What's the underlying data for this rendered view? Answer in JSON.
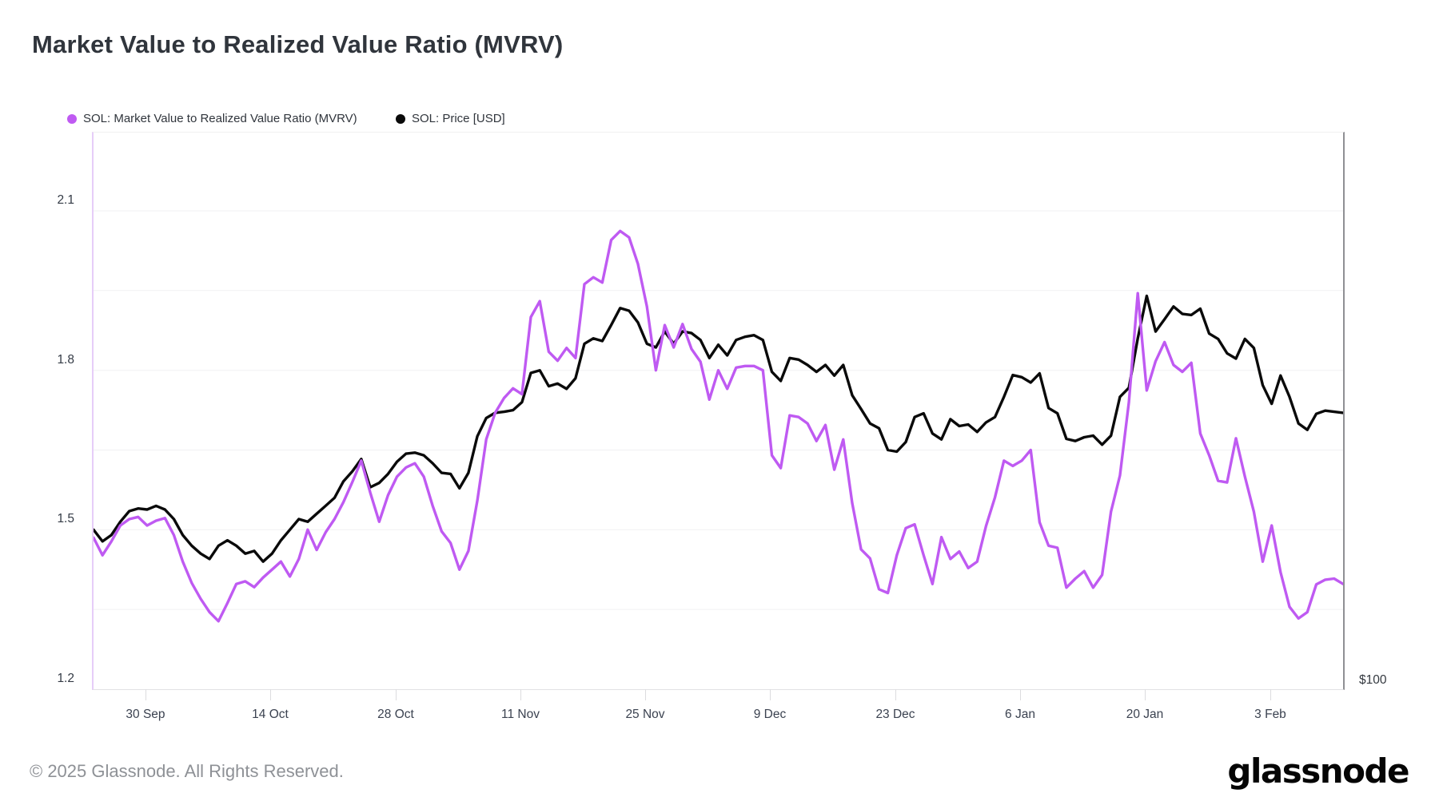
{
  "title": "Market Value to Realized Value Ratio (MVRV)",
  "legend": {
    "mvrv": {
      "label": "SOL: Market Value to Realized Value Ratio (MVRV)",
      "color": "#bf5af2"
    },
    "price": {
      "label": "SOL: Price [USD]",
      "color": "#0a0a0a"
    }
  },
  "footer": {
    "copyright": "© 2025 Glassnode. All Rights Reserved."
  },
  "watermark": "glassnode",
  "chart_data": {
    "type": "line",
    "title": "Market Value to Realized Value Ratio (MVRV)",
    "interval": "1 day",
    "start_day": "2024-09-24",
    "end_day": "2025-02-11",
    "x_tick_labels": [
      "30 Sep",
      "14 Oct",
      "28 Oct",
      "11 Nov",
      "25 Nov",
      "9 Dec",
      "23 Dec",
      "6 Jan",
      "20 Jan",
      "3 Feb"
    ],
    "x_tick_day_offsets": [
      6,
      20,
      34,
      48,
      62,
      76,
      90,
      104,
      118,
      132
    ],
    "y_axis_left": {
      "tick_labels": [
        "2.1",
        "1.8",
        "1.5",
        "1.2"
      ],
      "tick_values": [
        2.1,
        1.8,
        1.5,
        1.2
      ],
      "minor_gridline_values": [
        1.95,
        1.65,
        1.35
      ],
      "visible_range": [
        1.2,
        2.247
      ],
      "grid": true
    },
    "y_axis_right": {
      "tick_labels": [
        "$100"
      ],
      "note": "price axis, only $100 visible at bottom"
    },
    "legend_position": "top-left",
    "series": [
      {
        "name": "SOL: Market Value to Realized Value Ratio (MVRV)",
        "color": "#bf5af2",
        "axis": "left",
        "values": [
          1.485,
          1.452,
          1.478,
          1.508,
          1.52,
          1.524,
          1.508,
          1.517,
          1.522,
          1.49,
          1.44,
          1.4,
          1.37,
          1.345,
          1.328,
          1.362,
          1.398,
          1.403,
          1.392,
          1.41,
          1.425,
          1.44,
          1.412,
          1.445,
          1.5,
          1.462,
          1.495,
          1.52,
          1.552,
          1.59,
          1.63,
          1.57,
          1.515,
          1.565,
          1.6,
          1.617,
          1.625,
          1.6,
          1.545,
          1.497,
          1.475,
          1.425,
          1.46,
          1.555,
          1.67,
          1.72,
          1.748,
          1.766,
          1.755,
          1.9,
          1.93,
          1.835,
          1.818,
          1.842,
          1.823,
          1.962,
          1.975,
          1.965,
          2.045,
          2.062,
          2.05,
          2.0,
          1.92,
          1.8,
          1.885,
          1.843,
          1.887,
          1.84,
          1.816,
          1.745,
          1.8,
          1.765,
          1.805,
          1.808,
          1.808,
          1.8,
          1.64,
          1.616,
          1.715,
          1.712,
          1.7,
          1.667,
          1.697,
          1.613,
          1.67,
          1.55,
          1.463,
          1.446,
          1.388,
          1.381,
          1.452,
          1.503,
          1.51,
          1.452,
          1.398,
          1.486,
          1.445,
          1.459,
          1.428,
          1.44,
          1.507,
          1.561,
          1.63,
          1.62,
          1.63,
          1.65,
          1.514,
          1.47,
          1.466,
          1.391,
          1.408,
          1.422,
          1.391,
          1.415,
          1.534,
          1.602,
          1.74,
          1.945,
          1.762,
          1.817,
          1.853,
          1.81,
          1.797,
          1.814,
          1.681,
          1.64,
          1.592,
          1.589,
          1.672,
          1.6,
          1.534,
          1.44,
          1.508,
          1.42,
          1.355,
          1.333,
          1.345,
          1.397,
          1.406,
          1.408,
          1.398
        ]
      },
      {
        "name": "SOL: Price [USD]",
        "color": "#0a0a0a",
        "axis": "right",
        "values_unit": "plotted position expressed on left-axis scale; only $100 right-axis label visible",
        "values": [
          1.5,
          1.478,
          1.49,
          1.515,
          1.535,
          1.54,
          1.538,
          1.545,
          1.538,
          1.52,
          1.49,
          1.47,
          1.455,
          1.445,
          1.47,
          1.48,
          1.47,
          1.455,
          1.46,
          1.44,
          1.455,
          1.48,
          1.5,
          1.52,
          1.515,
          1.53,
          1.545,
          1.56,
          1.591,
          1.61,
          1.633,
          1.58,
          1.588,
          1.605,
          1.628,
          1.643,
          1.645,
          1.64,
          1.625,
          1.607,
          1.605,
          1.578,
          1.607,
          1.676,
          1.71,
          1.72,
          1.722,
          1.725,
          1.74,
          1.795,
          1.8,
          1.77,
          1.775,
          1.765,
          1.785,
          1.85,
          1.86,
          1.855,
          1.885,
          1.917,
          1.912,
          1.89,
          1.85,
          1.843,
          1.873,
          1.85,
          1.873,
          1.87,
          1.857,
          1.823,
          1.848,
          1.828,
          1.857,
          1.863,
          1.866,
          1.857,
          1.797,
          1.78,
          1.823,
          1.82,
          1.81,
          1.797,
          1.81,
          1.79,
          1.81,
          1.753,
          1.727,
          1.7,
          1.691,
          1.65,
          1.647,
          1.665,
          1.712,
          1.719,
          1.681,
          1.67,
          1.708,
          1.695,
          1.698,
          1.684,
          1.702,
          1.712,
          1.75,
          1.791,
          1.787,
          1.777,
          1.794,
          1.729,
          1.719,
          1.671,
          1.667,
          1.674,
          1.677,
          1.66,
          1.677,
          1.75,
          1.767,
          1.86,
          1.94,
          1.873,
          1.896,
          1.92,
          1.906,
          1.904,
          1.916,
          1.869,
          1.859,
          1.832,
          1.822,
          1.859,
          1.842,
          1.772,
          1.737,
          1.79,
          1.75,
          1.7,
          1.688,
          1.718,
          1.724,
          1.722,
          1.72
        ]
      }
    ]
  }
}
